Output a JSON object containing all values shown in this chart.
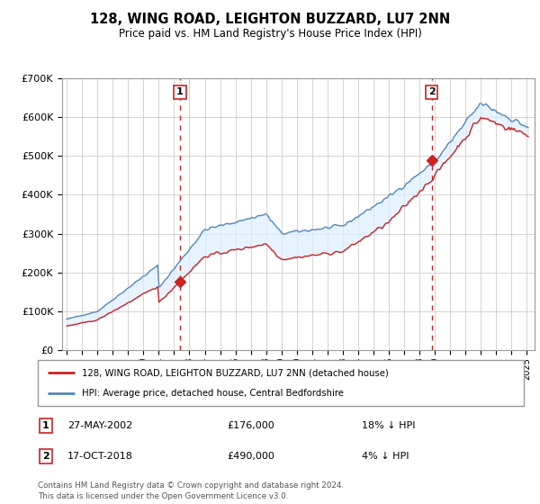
{
  "title": "128, WING ROAD, LEIGHTON BUZZARD, LU7 2NN",
  "subtitle": "Price paid vs. HM Land Registry's House Price Index (HPI)",
  "ylim": [
    0,
    700000
  ],
  "background_color": "#ffffff",
  "grid_color": "#cccccc",
  "hpi_color": "#5588bb",
  "price_color": "#cc2222",
  "vline_color": "#cc2222",
  "fill_color": "#ddeeff",
  "marker1_year": 2002.38,
  "marker2_year": 2018.79,
  "transaction1": {
    "date": "27-MAY-2002",
    "price": 176000,
    "label": "18% ↓ HPI"
  },
  "transaction2": {
    "date": "17-OCT-2018",
    "price": 490000,
    "label": "4% ↓ HPI"
  },
  "legend_label_price": "128, WING ROAD, LEIGHTON BUZZARD, LU7 2NN (detached house)",
  "legend_label_hpi": "HPI: Average price, detached house, Central Bedfordshire",
  "footer1": "Contains HM Land Registry data © Crown copyright and database right 2024.",
  "footer2": "This data is licensed under the Open Government Licence v3.0."
}
